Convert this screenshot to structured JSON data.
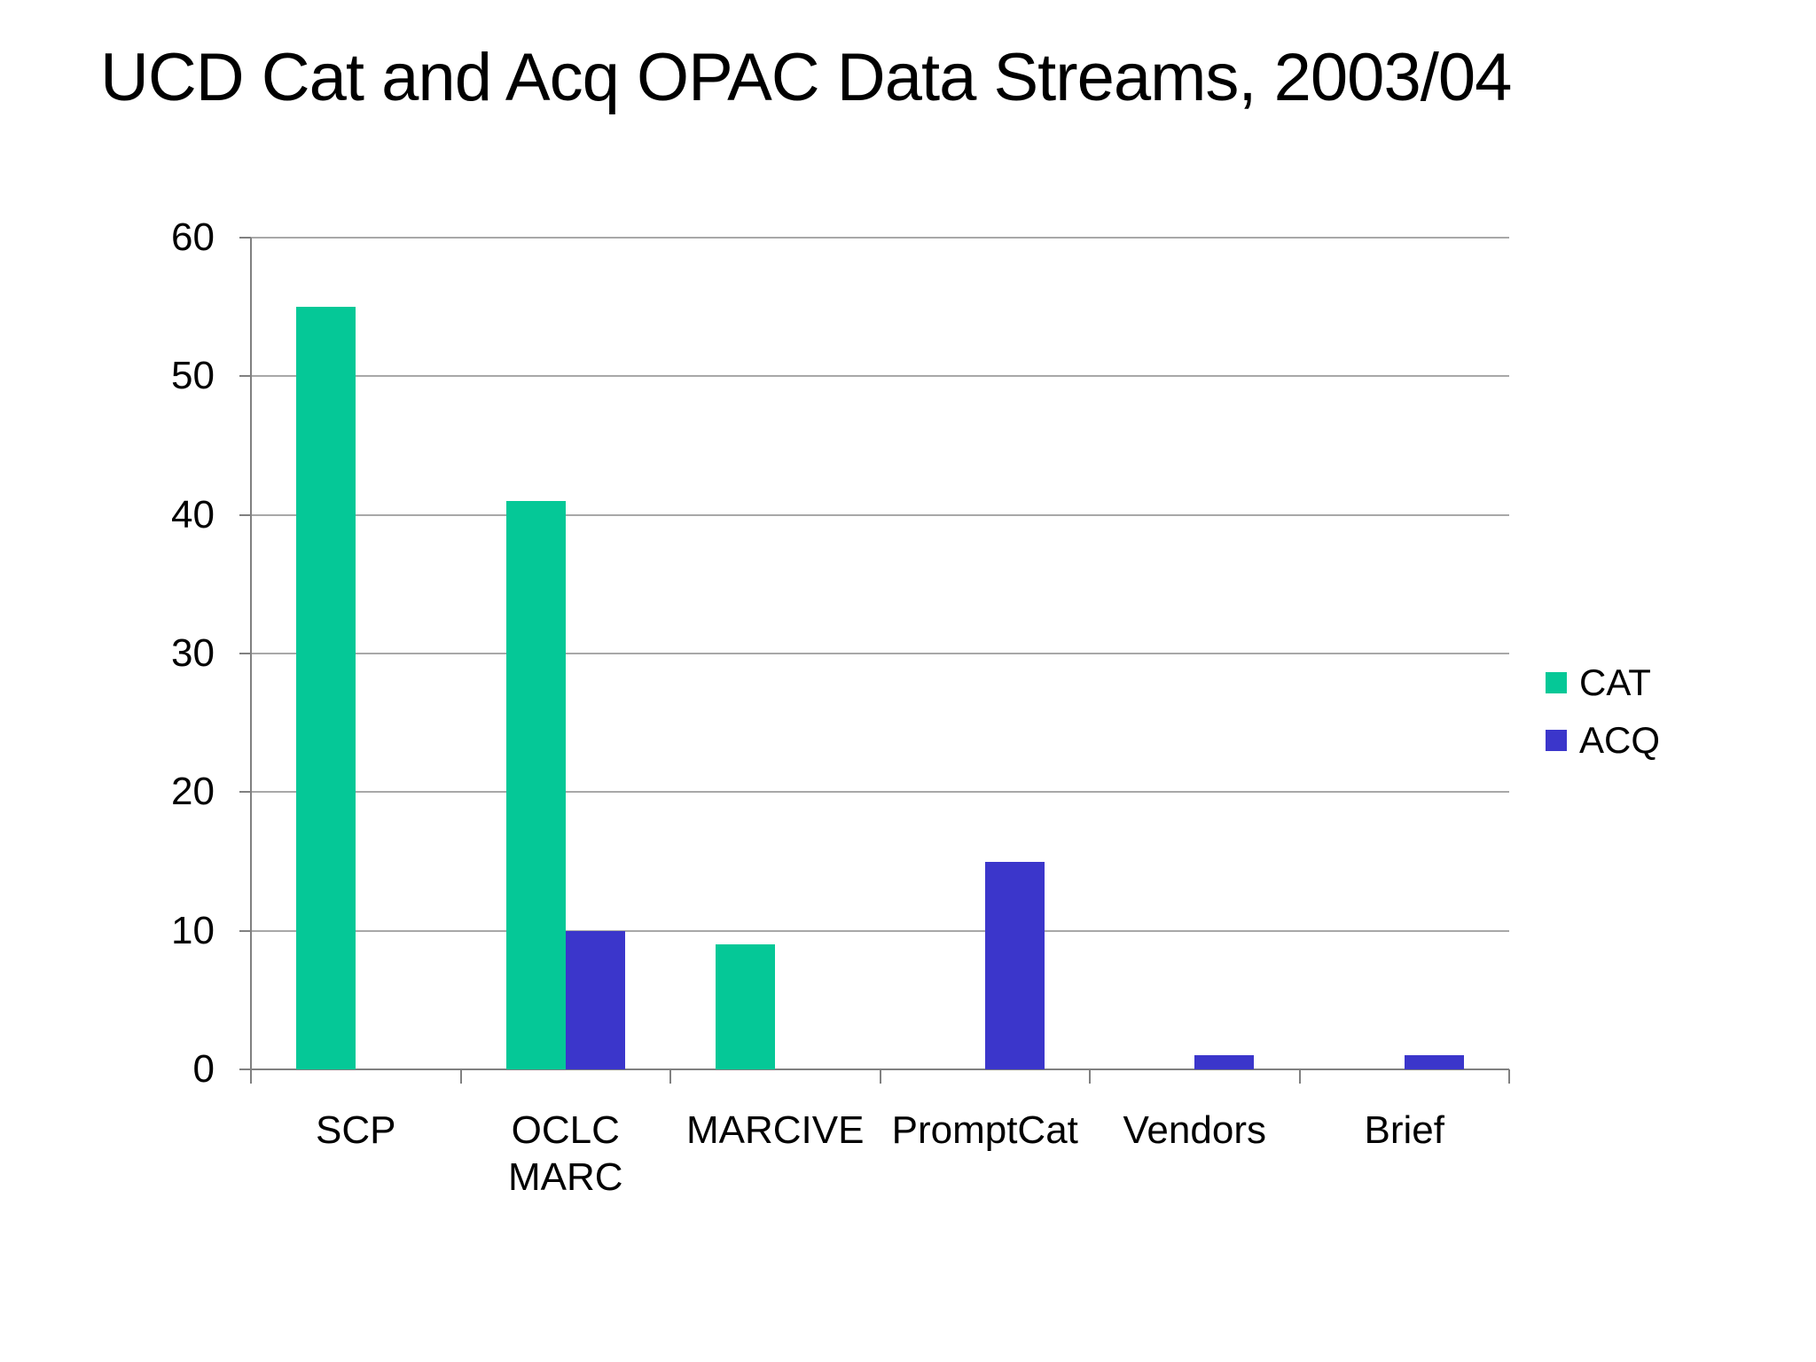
{
  "chart_data": {
    "type": "bar",
    "title": "UCD Cat and Acq OPAC Data Streams, 2003/04",
    "categories": [
      "SCP",
      "OCLC\nMARC",
      "MARCIVE",
      "PromptCat",
      "Vendors",
      "Brief"
    ],
    "series": [
      {
        "name": "CAT",
        "color": "#05C897",
        "values": [
          55,
          41,
          9,
          0,
          0,
          0
        ]
      },
      {
        "name": "ACQ",
        "color": "#3B36CB",
        "values": [
          0,
          10,
          0,
          15,
          1,
          1
        ]
      }
    ],
    "ylim": [
      0,
      60
    ],
    "yticks": [
      0,
      10,
      20,
      30,
      40,
      50,
      60
    ],
    "xlabel": "",
    "ylabel": "",
    "grid": "horizontal",
    "legend_position": "right",
    "legend_labels": [
      "CAT",
      "ACQ"
    ],
    "colors": {
      "gridline": "#A8A8A8",
      "axis": "#808080",
      "text": "#000000",
      "background": "#FFFFFF"
    }
  }
}
